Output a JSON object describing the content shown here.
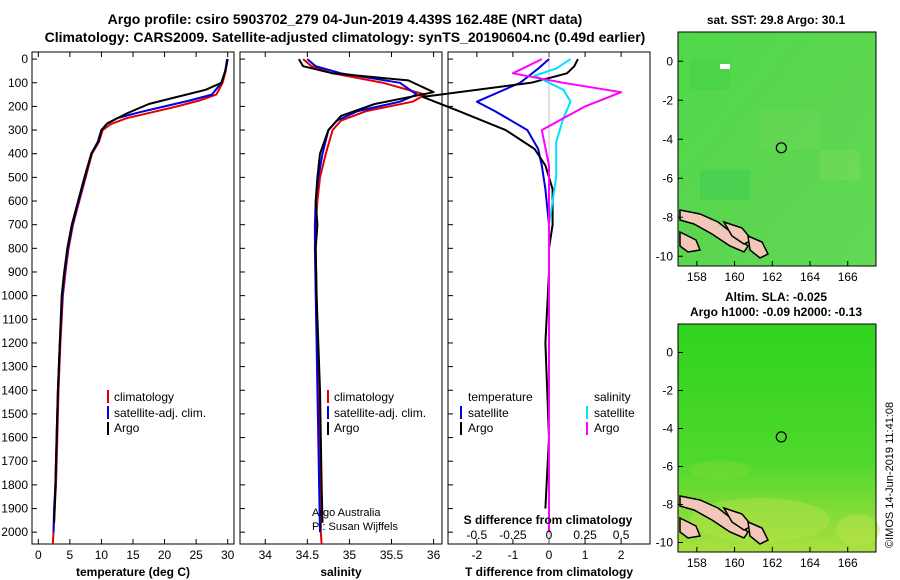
{
  "title": {
    "line1": "Argo profile: csiro 5903702_279 04-Jun-2019 4.439S 162.48E (NRT data)",
    "line2": "Climatology: CARS2009. Satellite-adjusted climatology: synTS_20190604.nc (0.49d earlier)"
  },
  "colors": {
    "climatology": "#e00000",
    "satellite": "#0000e0",
    "argo": "#000000",
    "argo_salinity_diff": "#ff00ff",
    "satellite_salinity_diff": "#00e0ff"
  },
  "depth_ticks": [
    "0",
    "100",
    "200",
    "300",
    "400",
    "500",
    "600",
    "700",
    "800",
    "900",
    "1000",
    "1100",
    "1200",
    "1300",
    "1400",
    "1500",
    "1600",
    "1700",
    "1800",
    "1900",
    "2000"
  ],
  "legend_profiles": {
    "climatology": "climatology",
    "satellite": "satellite-adj. clim.",
    "argo": "Argo"
  },
  "legend_diff": {
    "temperature_header": "temperature",
    "salinity_header": "salinity",
    "satellite": "satellite",
    "argo": "Argo"
  },
  "credit": {
    "line1": "Argo Australia",
    "line2": "PI: Susan Wijffels"
  },
  "diff_panel": {
    "s_title": "S difference from climatology",
    "s_ticks": [
      "-0.5",
      "-0.25",
      "0",
      "0.25",
      "0.5"
    ]
  },
  "chart_data": [
    {
      "type": "line",
      "xlabel": "temperature (deg C)",
      "ylabel": "",
      "xlim": [
        -1,
        31
      ],
      "ylim": [
        2050,
        -30
      ],
      "xticks": [
        "0",
        "5",
        "10",
        "15",
        "20",
        "25",
        "30"
      ],
      "series": [
        {
          "name": "climatology",
          "x": [
            29.9,
            29.7,
            29.2,
            28.2,
            25.5,
            22,
            18,
            14,
            11.5,
            10.2,
            9.6,
            8.5,
            7.5,
            6.5,
            5.5,
            4.8,
            4.3,
            3.9,
            3.5,
            3.2,
            3,
            2.8,
            2.6,
            2.4,
            2.3
          ],
          "y": [
            0,
            50,
            100,
            150,
            175,
            200,
            225,
            250,
            275,
            300,
            350,
            400,
            500,
            600,
            700,
            800,
            900,
            1000,
            1200,
            1400,
            1600,
            1800,
            1900,
            2000,
            2050
          ]
        },
        {
          "name": "satellite-adj. clim.",
          "x": [
            29.9,
            29.6,
            29,
            27.5,
            24,
            20,
            16,
            12.5,
            10.8,
            10,
            9.4,
            8.4,
            7.4,
            6.4,
            5.4,
            4.7,
            4.2,
            3.8,
            3.4,
            3.1,
            2.9,
            2.7,
            2.5,
            2.4
          ],
          "y": [
            0,
            50,
            100,
            150,
            175,
            200,
            225,
            250,
            275,
            300,
            350,
            400,
            500,
            600,
            700,
            800,
            900,
            1000,
            1200,
            1400,
            1600,
            1800,
            1900,
            2000
          ]
        },
        {
          "name": "Argo",
          "x": [
            30,
            29.8,
            29.5,
            29,
            26.5,
            22,
            17.5,
            14,
            11,
            10,
            9.5,
            8.4,
            7.3,
            6.3,
            5.3,
            4.6,
            4.1,
            3.7,
            3.4,
            3.1,
            2.9,
            2.7,
            2.6,
            2.5
          ],
          "y": [
            0,
            30,
            60,
            100,
            130,
            160,
            190,
            230,
            270,
            300,
            350,
            400,
            500,
            600,
            700,
            800,
            900,
            1000,
            1200,
            1400,
            1600,
            1800,
            1900,
            1960
          ]
        }
      ]
    },
    {
      "type": "line",
      "xlabel": "salinity",
      "ylabel": "",
      "xlim": [
        33.7,
        36.1
      ],
      "ylim": [
        2050,
        -30
      ],
      "xticks": [
        "34",
        "34.5",
        "35",
        "35.5",
        "36"
      ],
      "series": [
        {
          "name": "climatology",
          "x": [
            34.45,
            34.55,
            34.8,
            35.4,
            35.9,
            35.75,
            35.2,
            34.9,
            34.8,
            34.72,
            34.65,
            34.62,
            34.6,
            34.6,
            34.61,
            34.62,
            34.63,
            34.64,
            34.65,
            34.66,
            34.67
          ],
          "y": [
            0,
            30,
            60,
            100,
            150,
            180,
            220,
            260,
            300,
            400,
            500,
            600,
            700,
            800,
            1000,
            1200,
            1400,
            1600,
            1800,
            2000,
            2050
          ]
        },
        {
          "name": "satellite-adj. clim.",
          "x": [
            34.5,
            34.6,
            34.9,
            35.6,
            35.8,
            35.6,
            35.1,
            34.85,
            34.75,
            34.68,
            34.63,
            34.6,
            34.59,
            34.59,
            34.6,
            34.61,
            34.62,
            34.63,
            34.64,
            34.65
          ],
          "y": [
            0,
            30,
            60,
            100,
            150,
            180,
            220,
            260,
            300,
            400,
            500,
            600,
            700,
            800,
            1000,
            1200,
            1400,
            1600,
            1800,
            2000
          ]
        },
        {
          "name": "Argo",
          "x": [
            34.4,
            34.45,
            34.8,
            35.7,
            36.0,
            35.3,
            34.9,
            34.75,
            34.65,
            34.62,
            34.6,
            34.62,
            34.6,
            34.61,
            34.63,
            34.65,
            34.66,
            34.67,
            34.68
          ],
          "y": [
            0,
            30,
            60,
            90,
            140,
            190,
            240,
            300,
            400,
            500,
            600,
            700,
            800,
            1000,
            1200,
            1400,
            1600,
            1800,
            1960
          ]
        }
      ]
    },
    {
      "type": "line",
      "xlabel": "T difference from climatology",
      "ylabel": "",
      "xlim": [
        -2.8,
        2.8
      ],
      "ylim": [
        2050,
        -30
      ],
      "xticks": [
        "-2",
        "-1",
        "0",
        "1",
        "2"
      ],
      "series": [
        {
          "name": "temperature satellite",
          "x": [
            0,
            -0.3,
            -0.8,
            -2.0,
            -1.5,
            -0.6,
            -0.3,
            -0.2,
            -0.1,
            0,
            0,
            0,
            0
          ],
          "y": [
            0,
            40,
            100,
            180,
            220,
            300,
            380,
            450,
            550,
            700,
            900,
            1500,
            2000
          ]
        },
        {
          "name": "temperature Argo",
          "x": [
            0.8,
            0.7,
            0.5,
            -0.5,
            -3.5,
            -2.5,
            -1.2,
            -0.4,
            -0.1,
            0.1,
            0.1,
            0,
            0,
            -0.1,
            0,
            -0.1
          ],
          "y": [
            0,
            30,
            60,
            100,
            160,
            220,
            300,
            380,
            450,
            550,
            700,
            800,
            900,
            1200,
            1600,
            1900
          ]
        },
        {
          "name": "salinity satellite",
          "x": [
            0.15,
            0.05,
            -0.1,
            0.1,
            0.15,
            0.1,
            0.05,
            0.05,
            0,
            0,
            0,
            0
          ],
          "y": [
            0,
            40,
            70,
            130,
            180,
            250,
            350,
            500,
            700,
            1000,
            1500,
            2000
          ]
        },
        {
          "name": "salinity Argo",
          "x": [
            -0.05,
            -0.25,
            0.1,
            0.5,
            0.25,
            -0.05,
            0,
            0,
            0,
            0
          ],
          "y": [
            0,
            60,
            100,
            140,
            200,
            300,
            450,
            700,
            1000,
            2000
          ]
        }
      ]
    }
  ],
  "maps": [
    {
      "title1": "sat. SST: 29.8 Argo: 30.1",
      "title2": "",
      "xticks": [
        "158",
        "160",
        "162",
        "164",
        "166"
      ],
      "yticks": [
        "0",
        "-2",
        "-4",
        "-6",
        "-8",
        "-10"
      ],
      "xlim": [
        157,
        167.5
      ],
      "ylim": [
        -10.5,
        1.5
      ],
      "marker": [
        162.48,
        -4.44
      ]
    },
    {
      "title1": "Altim. SLA: -0.025",
      "title2": "Argo h1000: -0.09 h2000: -0.13",
      "xticks": [
        "158",
        "160",
        "162",
        "164",
        "166"
      ],
      "yticks": [
        "0",
        "-2",
        "-4",
        "-6",
        "-8",
        "-10"
      ],
      "xlim": [
        157,
        167.5
      ],
      "ylim": [
        -10.5,
        1.5
      ],
      "marker": [
        162.48,
        -4.44
      ]
    }
  ],
  "watermark": "©IMOS 14-Jun-2019 11:41:08"
}
